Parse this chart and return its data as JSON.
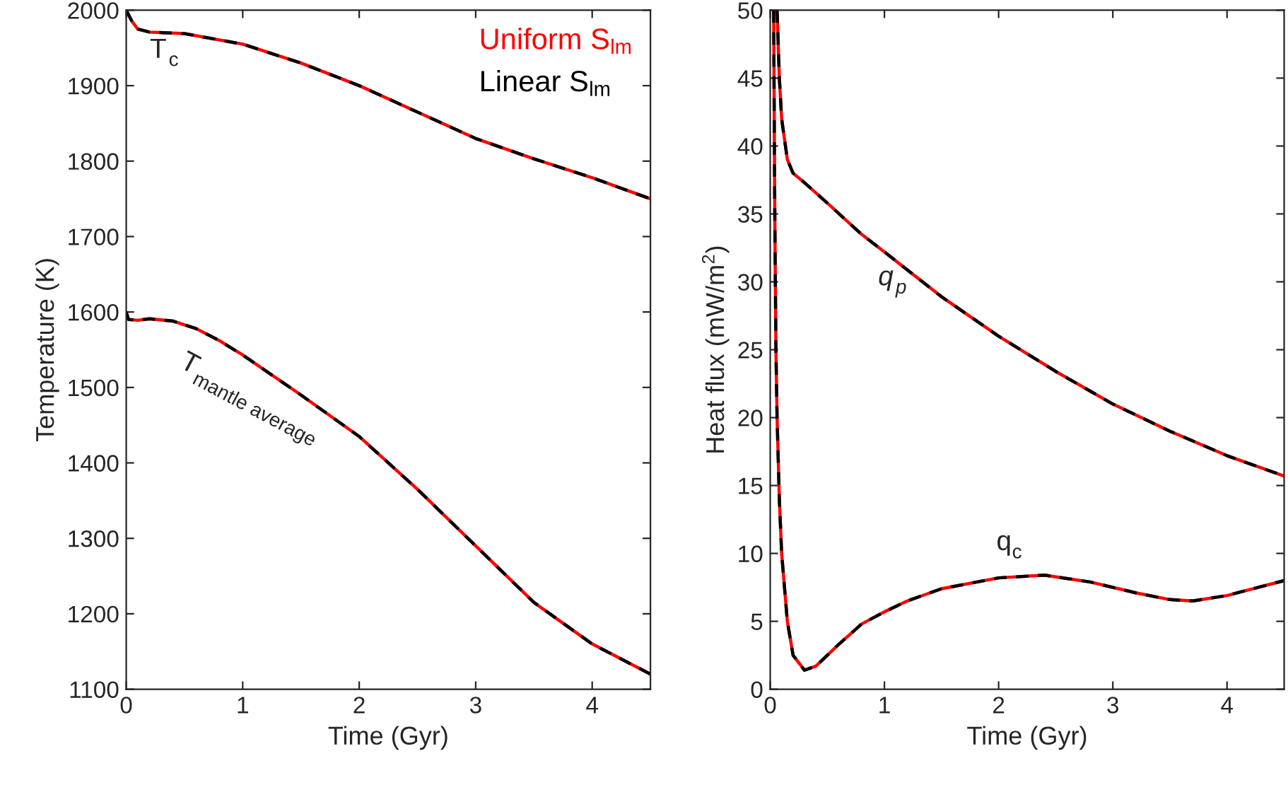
{
  "chart_data": [
    {
      "type": "line",
      "xlabel": "Time (Gyr)",
      "ylabel": "Temperature (K)",
      "xlim": [
        0,
        4.5
      ],
      "xticks": [
        0,
        1,
        2,
        3,
        4
      ],
      "ylim": [
        1100,
        2000
      ],
      "yticks": [
        1100,
        1200,
        1300,
        1400,
        1500,
        1600,
        1700,
        1800,
        1900,
        2000
      ],
      "legend": "top right",
      "grid": false,
      "annotations": [
        "T$_{c}$",
        "T$_{mantle average}$"
      ],
      "x": [
        0,
        0.05,
        0.1,
        0.2,
        0.5,
        1,
        1.5,
        2,
        2.5,
        3,
        3.5,
        4,
        4.5
      ],
      "series": [
        {
          "name": "Uniform S$_{lm}$",
          "color": "#ff0000",
          "line_style": "solid",
          "values": [
            2000,
            1985,
            1975,
            1971,
            1969,
            1955,
            1930,
            1900,
            1865,
            1830,
            1803,
            1778,
            1750
          ]
        },
        {
          "name": "Linear S$_{lm}$",
          "color": "#000000",
          "line_style": "dashed",
          "values": [
            2000,
            1985,
            1975,
            1971,
            1969,
            1955,
            1930,
            1900,
            1865,
            1830,
            1803,
            1778,
            1750
          ]
        },
        {
          "color": "#ff0000",
          "line_style": "solid",
          "x": [
            0,
            0.02,
            0.1,
            0.2,
            0.4,
            0.6,
            0.8,
            1,
            1.5,
            2,
            2.5,
            3,
            3.5,
            4,
            4.5
          ],
          "values": [
            1600,
            1590,
            1589,
            1591,
            1588,
            1578,
            1562,
            1543,
            1490,
            1435,
            1365,
            1290,
            1215,
            1160,
            1120
          ]
        },
        {
          "color": "#000000",
          "line_style": "dashed",
          "x": [
            0,
            0.02,
            0.1,
            0.2,
            0.4,
            0.6,
            0.8,
            1,
            1.5,
            2,
            2.5,
            3,
            3.5,
            4,
            4.5
          ],
          "values": [
            1600,
            1590,
            1589,
            1591,
            1588,
            1578,
            1562,
            1543,
            1490,
            1435,
            1365,
            1290,
            1215,
            1160,
            1120
          ]
        }
      ]
    },
    {
      "type": "line",
      "xlabel": "Time (Gyr)",
      "ylabel": "Heat flux (mW/m$^{2}$)",
      "xlim": [
        0,
        4.5
      ],
      "xticks": [
        0,
        1,
        2,
        3,
        4
      ],
      "ylim": [
        0,
        50
      ],
      "yticks": [
        0,
        5,
        10,
        15,
        20,
        25,
        30,
        35,
        40,
        45,
        50
      ],
      "grid": false,
      "annotations": [
        "q$_{p}$",
        "q$_{c}$"
      ],
      "series": [
        {
          "color": "#ff0000",
          "line_style": "solid",
          "x": [
            0.06,
            0.08,
            0.1,
            0.15,
            0.2,
            0.3,
            0.5,
            0.8,
            1,
            1.5,
            2,
            2.5,
            3,
            3.5,
            4,
            4.5
          ],
          "values": [
            50,
            45,
            42,
            39,
            38,
            37.3,
            35.8,
            33.5,
            32.2,
            28.9,
            26,
            23.4,
            21,
            19,
            17.2,
            15.7
          ]
        },
        {
          "color": "#000000",
          "line_style": "dashed",
          "x": [
            0.06,
            0.08,
            0.1,
            0.15,
            0.2,
            0.3,
            0.5,
            0.8,
            1,
            1.5,
            2,
            2.5,
            3,
            3.5,
            4,
            4.5
          ],
          "values": [
            50,
            45,
            42,
            39,
            38,
            37.3,
            35.8,
            33.5,
            32.2,
            28.9,
            26,
            23.4,
            21,
            19,
            17.2,
            15.7
          ]
        },
        {
          "color": "#ff0000",
          "line_style": "solid",
          "x": [
            0.03,
            0.04,
            0.05,
            0.06,
            0.08,
            0.1,
            0.15,
            0.2,
            0.3,
            0.4,
            0.6,
            0.8,
            1,
            1.2,
            1.5,
            2,
            2.4,
            2.8,
            3.2,
            3.5,
            3.7,
            4,
            4.5
          ],
          "values": [
            50,
            35,
            25,
            20,
            14,
            10,
            5,
            2.5,
            1.4,
            1.7,
            3.3,
            4.8,
            5.7,
            6.5,
            7.4,
            8.2,
            8.4,
            7.9,
            7.1,
            6.6,
            6.5,
            6.9,
            8.0
          ]
        },
        {
          "color": "#000000",
          "line_style": "dashed",
          "x": [
            0.03,
            0.04,
            0.05,
            0.06,
            0.08,
            0.1,
            0.15,
            0.2,
            0.3,
            0.4,
            0.6,
            0.8,
            1,
            1.2,
            1.5,
            2,
            2.4,
            2.8,
            3.2,
            3.5,
            3.7,
            4,
            4.5
          ],
          "values": [
            50,
            35,
            25,
            20,
            14,
            10,
            5,
            2.5,
            1.4,
            1.7,
            3.3,
            4.8,
            5.7,
            6.5,
            7.4,
            8.2,
            8.4,
            7.9,
            7.1,
            6.6,
            6.5,
            6.9,
            8.0
          ]
        }
      ]
    }
  ]
}
